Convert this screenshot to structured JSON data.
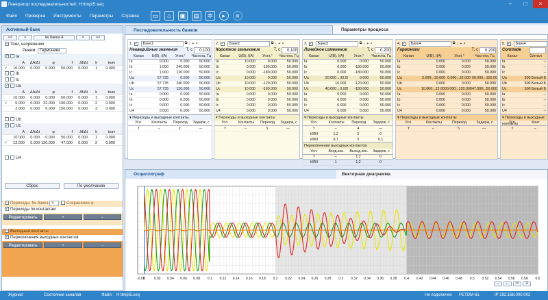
{
  "window": {
    "title": "Генератор последовательностей: H:\\tmp\\5.seq"
  },
  "menu": [
    "Файл",
    "Проверка",
    "Инструменты",
    "Параметры",
    "Справка"
  ],
  "toolbar": [
    "new-file-icon",
    "open-folder-icon",
    "save-icon",
    "save-as-icon",
    "settings-icon",
    "play-icon",
    "stop-icon"
  ],
  "left": {
    "title": "Активный банк",
    "nav": {
      "first": "<<",
      "prev": "<",
      "bank": "№ банка 4",
      "next": ">",
      "last": ">>"
    },
    "group_label": "Токи, напряжения",
    "mode_label": "Режим:",
    "mode_value": "Гармоники",
    "channels": [
      {
        "name": "Ia",
        "checked": true
      },
      {
        "name": "Ib",
        "checked": false
      },
      {
        "name": "Ic",
        "checked": false
      },
      {
        "name": "Ua",
        "checked": true
      },
      {
        "name": "Ub",
        "checked": false
      },
      {
        "name": "Uc",
        "checked": true
      },
      {
        "name": "U4",
        "checked": false
      }
    ],
    "ia_header": [
      "",
      "A",
      "ΔA/Δt",
      "φ",
      "f",
      "Δf/Δt",
      "k",
      "tнач"
    ],
    "ia_rows": [
      [
        "✓",
        "10.000",
        "0.000",
        "0.000",
        "50.000",
        "0.000",
        "1",
        "0.000"
      ]
    ],
    "ua_header": [
      "",
      "A",
      "ΔA/Δt",
      "φ",
      "f",
      "Δf/Δt",
      "k",
      "tнач"
    ],
    "ua_rows": [
      [
        "",
        "10.000",
        "0.000",
        "0.000",
        "50.000",
        "0.000",
        "1",
        "0.000"
      ],
      [
        "✓",
        "5.000",
        "0.000",
        "32.000",
        "100.000",
        "0.000",
        "2",
        "0.000"
      ],
      [
        "",
        "2.000",
        "0.000",
        "0.000",
        "150.000",
        "0.000",
        "3",
        "0.000"
      ]
    ],
    "uc_rows": [
      [
        "",
        "10.000",
        "0.000",
        "0.000",
        "50.000",
        "0.000",
        "1",
        "0.000"
      ],
      [
        "✓",
        "12.000",
        "0.000",
        "120.000",
        "47.000",
        "0.000",
        "2",
        "0.000"
      ]
    ],
    "reset_label": "Сброс",
    "default_label": "По умолчанию",
    "transitions": {
      "label": "Переходы",
      "bank_label": "№ банка",
      "bank_value": "5",
      "keep_phase": "Сохранение φ",
      "by_contacts": "Переходы по контактам",
      "edit": "Редактировать",
      "plus": "+",
      "minus": "-"
    },
    "outputs": {
      "label": "Выходные контакты",
      "switch": "Переключения выходных контактов",
      "edit": "Редактировать",
      "plus": "+",
      "minus": "-"
    }
  },
  "tabs": {
    "seq": "Последовательность банков",
    "params": "Параметры процесса"
  },
  "banks": [
    {
      "num": "1.",
      "name": "Банк1",
      "title": "Неаварийные значения",
      "t_label": "T, c",
      "t_value": "0.100",
      "cols": [
        "Канал",
        "U(В), I(А)",
        "Угол,°",
        "Частота, Гц"
      ],
      "rows": [
        [
          "Ia",
          "0.000",
          "0.000",
          "50.000"
        ],
        [
          "Ib",
          "1.000",
          "240.000",
          "50.000"
        ],
        [
          "Ic",
          "1.000",
          "120.000",
          "50.000"
        ],
        [
          "Ua",
          "57.735",
          "0.000",
          "50.000"
        ],
        [
          "Ub",
          "57.735",
          "240.000",
          "50.000"
        ],
        [
          "Uc",
          "57.735",
          "120.000",
          "50.000"
        ],
        [
          "Ia",
          "0.000",
          "0.000",
          "50.000"
        ],
        [
          "Ib",
          "0.000",
          "0.000",
          "50.000"
        ],
        [
          "Ic",
          "0.000",
          "0.000",
          "50.000"
        ],
        [
          "U4",
          "0.000",
          "0.000",
          "50.000"
        ]
      ],
      "trans_label": "Переходы и выходные контакты",
      "trans_cols": [
        "Усл.",
        "Контакты",
        "Переход",
        "Задерж, с"
      ],
      "trans_rows": [
        [
          "T",
          "--",
          "2",
          "---"
        ]
      ]
    },
    {
      "num": "2.",
      "name": "Банк2",
      "title": "Короткое замыкание",
      "t_label": "T, c",
      "t_value": "0.100",
      "cols": [
        "Канал",
        "U(В), I(А)",
        "Угол,°",
        "Частота, Гц"
      ],
      "rows": [
        [
          "Ia",
          "10.000",
          "0.000",
          "50.000"
        ],
        [
          "Ib",
          "0.000",
          "-180.000",
          "50.000"
        ],
        [
          "Ic",
          "0.000",
          "-180.000",
          "50.000"
        ],
        [
          "Ua",
          "10.000",
          "0.000",
          "50.000"
        ],
        [
          "Ub",
          "10.000",
          "-120.000",
          "50.000"
        ],
        [
          "Uc",
          "10.000",
          "-180.000",
          "50.000"
        ],
        [
          "Ia",
          "0.000",
          "0.000",
          "50.000"
        ],
        [
          "Ib",
          "0.000",
          "0.000",
          "50.000"
        ],
        [
          "Ic",
          "0.000",
          "0.000",
          "50.000"
        ],
        [
          "U4",
          "0.000",
          "0.000",
          "50.000"
        ]
      ],
      "trans_label": "Переходы и выходные контакты",
      "trans_cols": [
        "Усл.",
        "Контакты",
        "Переход",
        "Задерж, с"
      ],
      "trans_rows": [
        [
          "T",
          "--",
          "3",
          "---"
        ]
      ]
    },
    {
      "num": "3.",
      "name": "Банк3",
      "title": "Линейное изменение",
      "t_label": "T, c",
      "t_value": "0.200",
      "cols": [
        "Канал",
        "U(В), I(А)",
        "Угол,°",
        "Частота, Гц"
      ],
      "rows": [
        [
          "Ia",
          "0.000",
          "0.000",
          "50.000"
        ],
        [
          "Ib",
          "0.000",
          "-180.000",
          "50.000"
        ],
        [
          "Ic",
          "0.000",
          "-180.000",
          "50.000"
        ],
        [
          "Ua",
          "20.000→30.000",
          "0.000",
          "50.000"
        ],
        [
          "Ub",
          "10.000",
          "-120.000",
          "50.000"
        ],
        [
          "Uc",
          "40.000→0.000",
          "-180.000",
          "50.000"
        ],
        [
          "Ia",
          "0.000",
          "0.000",
          "50.000"
        ],
        [
          "Ib",
          "0.000",
          "0.000",
          "50.000"
        ],
        [
          "Ic",
          "0.000",
          "0.000",
          "50.000"
        ],
        [
          "U4",
          "0.000",
          "0.000",
          "50.000"
        ]
      ],
      "trans_label": "Переходы и выходные контакты",
      "trans_cols": [
        "Усл.",
        "Контакты",
        "Переход",
        "Задерж, с"
      ],
      "trans_rows": [
        [
          "T",
          "--",
          "4",
          "---"
        ],
        [
          "ИЛИ",
          "1;2",
          "5",
          "0"
        ],
        [
          "ИЛИ",
          "6;7",
          "5",
          "0.1"
        ]
      ],
      "out_label": "Переключения выходных контактов",
      "out_cols": [
        "Усл.",
        "Вход.кон.",
        "Выход.кон.",
        "Задерж, с"
      ],
      "out_rows": [
        [
          "T",
          "--",
          "1;2",
          "0"
        ],
        [
          "ИЛИ",
          "1",
          "1;2",
          "0"
        ]
      ]
    },
    {
      "num": "4.",
      "name": "Банк4",
      "title": "Гармоники",
      "t_label": "T, c",
      "t_value": "0.200",
      "cols": [
        "Канал",
        "U(В), I(А)",
        "Угол,°",
        "Частота, Гц"
      ],
      "rows": [
        [
          "Ia",
          "0.000",
          "0.000",
          "50.000"
        ],
        [
          "Ib",
          "0.000",
          "0.000",
          "50.000"
        ],
        [
          "Ic",
          "0.000",
          "0.000",
          "50.000"
        ],
        [
          "Ua",
          "5.000;..10.000",
          "0.000;..32.000",
          "50.000;..150.000"
        ],
        [
          "Ub",
          "0.000",
          "0.000",
          "50.000"
        ],
        [
          "Uc",
          "10.000;..12.000",
          "0.000;..120.000",
          "47.000;..50.000"
        ],
        [
          "Ia",
          "0.000",
          "0.000",
          "50.000"
        ],
        [
          "Ib",
          "0.000",
          "0.000",
          "50.000"
        ],
        [
          "Ic",
          "0.000",
          "0.000",
          "50.000"
        ],
        [
          "U4",
          "0.000",
          "0.000",
          "50.000"
        ]
      ],
      "trans_label": "Переходы и выходные контакты",
      "trans_cols": [
        "Усл.",
        "Контакты",
        "Переход",
        "Задерж, с"
      ],
      "trans_rows": [
        [
          "T",
          "--",
          "5",
          "---"
        ]
      ]
    },
    {
      "num": "5.",
      "name": "Банк4",
      "title": "Comtrade",
      "t_label": "",
      "t_value": "",
      "cols": [
        "Канал",
        "Сигнал"
      ],
      "rows": [
        [
          "Ia",
          "--"
        ],
        [
          "Ib",
          "--"
        ],
        [
          "Ic",
          "--"
        ],
        [
          "Ua",
          "500 Белый Б"
        ],
        [
          "Ub",
          "500 Белый Б"
        ],
        [
          "Uc",
          "500 Белый Б"
        ],
        [
          "Ia",
          "--"
        ],
        [
          "Ib",
          "--"
        ],
        [
          "Ic",
          "--"
        ],
        [
          "U4",
          "--"
        ]
      ],
      "trans_label": "Переходы и выходные контакты",
      "trans_cols": [
        "Усл.",
        "Конт"
      ],
      "trans_rows": [
        [
          "T",
          "--"
        ]
      ]
    }
  ],
  "osc": {
    "tab": "Осциллограф",
    "vector_tab": "Векторная диаграмма"
  },
  "chart_data": {
    "type": "line",
    "xlabel": "",
    "ylabel": "",
    "xlim": [
      -0.01,
      0.6
    ],
    "x_ticks": [
      "-0.00",
      "0",
      "0.02",
      "0.04",
      "0.06",
      "0.08",
      "0.1",
      "0.12",
      "0.14",
      "0.16",
      "0.18",
      "0.2",
      "0.22",
      "0.24",
      "0.26",
      "0.28",
      "0.3",
      "0.32",
      "0.34",
      "0.36",
      "0.38",
      "0.4",
      "0.42",
      "0.44",
      "0.46",
      "0.48",
      "0.5",
      "0.52",
      "0.54",
      "0.56",
      "0.58",
      "0.6"
    ],
    "bank_boundaries": [
      0.1,
      0.2,
      0.4,
      0.6
    ],
    "grid": true,
    "series": [
      {
        "name": "",
        "color": "#e8e800",
        "segments": [
          [
            0,
            0.1,
            57.7,
            50,
            0
          ],
          [
            0.1,
            0.2,
            10,
            50,
            0
          ],
          [
            0.2,
            0.4,
            25,
            50,
            0
          ],
          [
            0.4,
            0.6,
            10,
            50,
            0
          ]
        ]
      },
      {
        "name": "",
        "color": "#1a9a1a",
        "segments": [
          [
            0,
            0.1,
            57.7,
            50,
            240
          ],
          [
            0.1,
            0.2,
            10,
            50,
            240
          ],
          [
            0.2,
            0.4,
            10,
            50,
            240
          ],
          [
            0.4,
            0.6,
            0,
            50,
            0
          ]
        ]
      },
      {
        "name": "",
        "color": "#e02020",
        "segments": [
          [
            0,
            0.1,
            57.7,
            50,
            120
          ],
          [
            0.1,
            0.2,
            10,
            50,
            180
          ],
          [
            0.2,
            0.4,
            20,
            50,
            180
          ],
          [
            0.4,
            0.6,
            12,
            47,
            120
          ]
        ]
      },
      {
        "name": "",
        "color": "#e87a10",
        "segments": [
          [
            0,
            0.1,
            1,
            50,
            240
          ],
          [
            0.1,
            0.2,
            0,
            50,
            0
          ],
          [
            0.2,
            0.4,
            0,
            50,
            0
          ],
          [
            0.4,
            0.6,
            0,
            50,
            0
          ]
        ]
      }
    ]
  },
  "status": {
    "journal": "Журнал",
    "channels": "Состояние каналов",
    "file_label": "Файл:",
    "file": "H:\\tmp\\5.seq",
    "conn": "Не подключен",
    "device": "РЕТОМ-61",
    "ip": "IP 192.168.000.002"
  }
}
